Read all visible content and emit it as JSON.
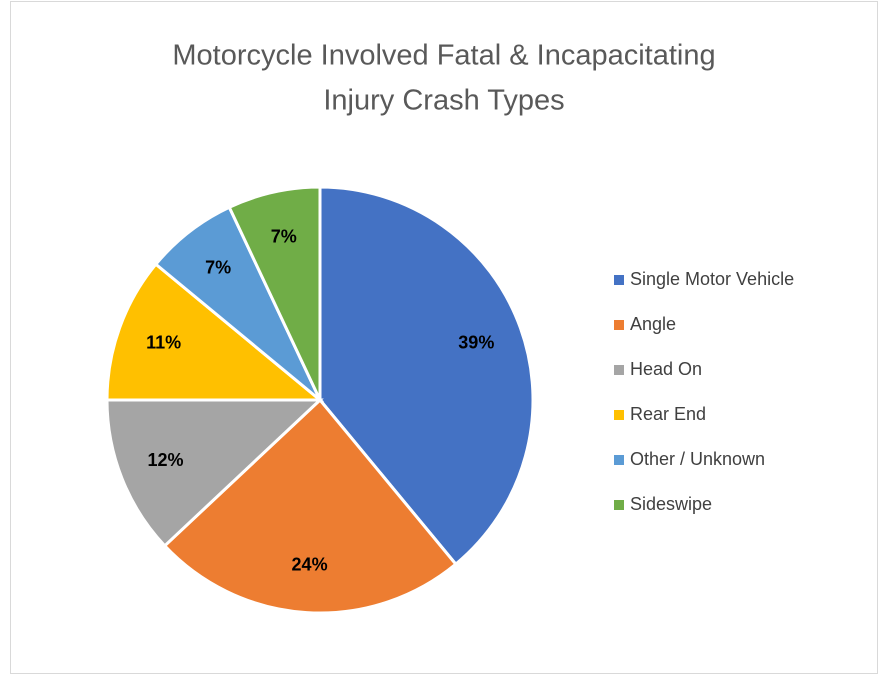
{
  "chart_data": {
    "type": "pie",
    "title": [
      "Motorcycle Involved Fatal & Incapacitating",
      "Injury Crash Types"
    ],
    "categories": [
      "Single Motor Vehicle",
      "Angle",
      "Head On",
      "Rear End",
      "Other / Unknown",
      "Sideswipe"
    ],
    "values": [
      39,
      24,
      12,
      11,
      7,
      7
    ],
    "value_labels": [
      "39%",
      "24%",
      "12%",
      "11%",
      "7%",
      "7%"
    ],
    "colors": [
      "#4472c4",
      "#ed7d31",
      "#a5a5a5",
      "#ffc000",
      "#5b9bd5",
      "#70ad47"
    ],
    "legend": "right"
  }
}
